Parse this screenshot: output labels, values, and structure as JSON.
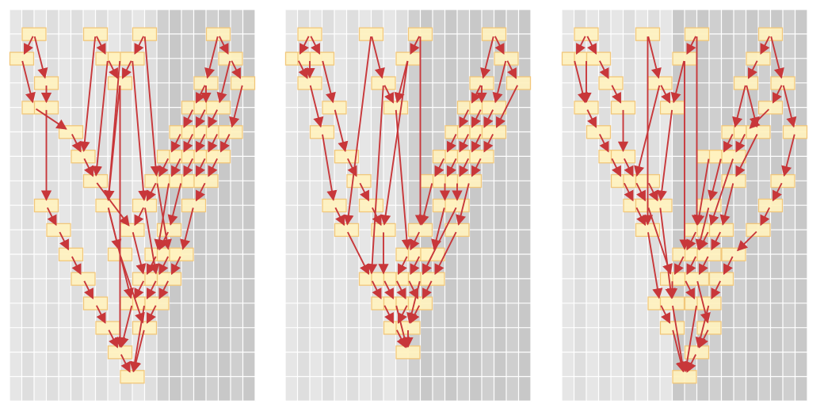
{
  "colors": {
    "background": "#ffffff",
    "column_light_a": "#e6e6e6",
    "column_light_b": "#dedede",
    "column_dark_a": "#cfcfcf",
    "column_dark_b": "#c8c8c8",
    "grid_line": "#ffffff",
    "node_fill": "#fff2bf",
    "node_stroke": "#f2c77a",
    "arrow": "#c8373a"
  },
  "node_shape": "rectangle",
  "panel_count": 3,
  "panels": [
    {
      "id": "panel-a",
      "columns": 20,
      "rows": 16,
      "dark_from_column": 12
    },
    {
      "id": "panel-b",
      "columns": 20,
      "rows": 16,
      "dark_from_column": 10
    },
    {
      "id": "panel-c",
      "columns": 20,
      "rows": 16,
      "dark_from_column": 9
    }
  ]
}
